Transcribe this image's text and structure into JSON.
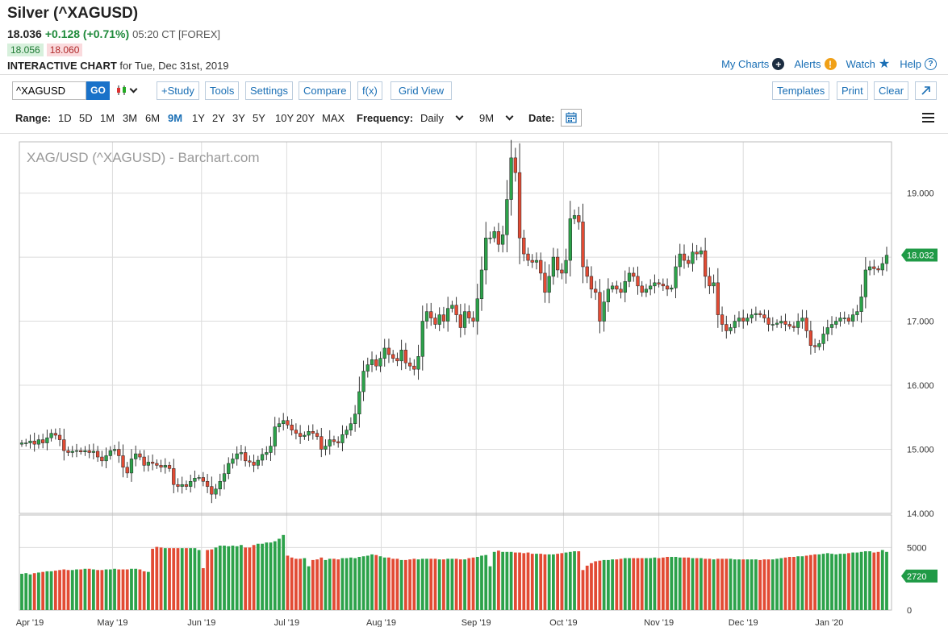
{
  "header": {
    "title": "Silver (^XAGUSD)",
    "last": "18.036",
    "change": "+0.128 (+0.71%)",
    "time": "05:20 CT [FOREX]",
    "bid": "18.056",
    "ask": "18.060",
    "chart_label": "INTERACTIVE CHART",
    "chart_date": "for Tue, Dec 31st, 2019"
  },
  "links": {
    "my_charts": "My Charts",
    "alerts": "Alerts",
    "watch": "Watch",
    "help": "Help"
  },
  "toolbar": {
    "symbol_value": "^XAGUSD",
    "go": "GO",
    "study": "+Study",
    "tools": "Tools",
    "settings": "Settings",
    "compare": "Compare",
    "fx": "f(x)",
    "grid_view": "Grid View",
    "templates": "Templates",
    "print": "Print",
    "clear": "Clear"
  },
  "rangebar": {
    "range_label": "Range:",
    "ranges": [
      "1D",
      "5D",
      "1M",
      "3M",
      "6M",
      "9M",
      "1Y",
      "2Y",
      "3Y",
      "5Y",
      "10Y",
      "20Y",
      "MAX"
    ],
    "active_range": "9M",
    "frequency_label": "Frequency:",
    "frequency_value": "Daily",
    "period_value": "9M",
    "date_label": "Date:"
  },
  "colors": {
    "up": "#2ca24a",
    "down": "#e24b34",
    "accent": "#1a6fb5",
    "price_tag": "#1f9a46"
  },
  "icons": [
    "plus-circle-icon",
    "alert-icon",
    "star-icon",
    "help-icon",
    "candlestick-icon",
    "calendar-icon",
    "expand-icon",
    "menu-icon"
  ],
  "chart_data": {
    "type": "candlestick",
    "title": "XAG/USD (^XAGUSD) - Barchart.com",
    "price_axis": {
      "ylim": [
        14.0,
        19.8
      ],
      "ticks": [
        "14.000",
        "15.000",
        "16.000",
        "17.000",
        "18.000",
        "19.000"
      ]
    },
    "volume_axis": {
      "ylim": [
        0,
        7600
      ],
      "ticks": [
        "0",
        "5000"
      ]
    },
    "x_ticks": [
      "Apr '19",
      "May '19",
      "Jun '19",
      "Jul '19",
      "Aug '19",
      "Sep '19",
      "Oct '19",
      "Nov '19",
      "Dec '19",
      "Jan '20"
    ],
    "last_price_label": "18.032",
    "last_volume_label": "2720",
    "grid": true,
    "closes": [
      15.1,
      15.1,
      15.13,
      15.08,
      15.15,
      15.1,
      15.18,
      15.25,
      15.22,
      15.15,
      14.98,
      14.95,
      14.97,
      14.98,
      14.96,
      14.98,
      14.95,
      14.97,
      14.88,
      14.82,
      14.9,
      14.98,
      15.0,
      14.9,
      14.72,
      14.63,
      14.85,
      14.93,
      14.88,
      14.75,
      14.8,
      14.78,
      14.75,
      14.72,
      14.75,
      14.7,
      14.45,
      14.42,
      14.45,
      14.42,
      14.5,
      14.55,
      14.56,
      14.5,
      14.42,
      14.3,
      14.38,
      14.5,
      14.62,
      14.78,
      14.85,
      14.93,
      14.95,
      14.82,
      14.8,
      14.75,
      14.83,
      14.92,
      14.95,
      15.05,
      15.35,
      15.4,
      15.45,
      15.38,
      15.3,
      15.25,
      15.2,
      15.22,
      15.28,
      15.25,
      15.2,
      15.0,
      15.05,
      15.15,
      15.12,
      15.1,
      15.23,
      15.3,
      15.4,
      15.55,
      15.9,
      16.22,
      16.32,
      16.4,
      16.3,
      16.42,
      16.58,
      16.48,
      16.42,
      16.38,
      16.55,
      16.35,
      16.3,
      16.25,
      16.45,
      17.0,
      17.15,
      17.05,
      16.95,
      17.1,
      17.0,
      17.2,
      17.25,
      17.1,
      16.9,
      17.15,
      17.05,
      17.0,
      17.35,
      17.8,
      18.3,
      18.3,
      18.4,
      18.2,
      18.35,
      18.9,
      19.55,
      19.32,
      18.3,
      18.05,
      17.95,
      17.92,
      17.95,
      17.75,
      17.45,
      17.7,
      18.0,
      17.8,
      17.75,
      17.95,
      18.6,
      18.65,
      18.55,
      17.85,
      17.7,
      17.5,
      17.45,
      17.0,
      17.3,
      17.5,
      17.55,
      17.5,
      17.45,
      17.62,
      17.75,
      17.7,
      17.55,
      17.45,
      17.5,
      17.55,
      17.6,
      17.58,
      17.55,
      17.5,
      17.52,
      17.85,
      18.05,
      17.95,
      17.9,
      18.08,
      18.05,
      18.1,
      17.7,
      17.55,
      17.6,
      17.1,
      16.95,
      16.85,
      16.9,
      17.0,
      17.05,
      17.0,
      17.05,
      17.1,
      17.12,
      17.1,
      17.05,
      16.95,
      16.95,
      16.97,
      17.0,
      16.95,
      16.92,
      16.9,
      17.0,
      17.05,
      16.85,
      16.62,
      16.6,
      16.65,
      16.8,
      16.9,
      16.95,
      17.0,
      17.05,
      17.05,
      17.0,
      17.1,
      17.15,
      17.38,
      17.8,
      17.85,
      17.82,
      17.8,
      17.9,
      18.03
    ],
    "volumes": [
      2900,
      2950,
      2850,
      2950,
      3000,
      3050,
      3100,
      3100,
      3150,
      3200,
      3250,
      3200,
      3200,
      3250,
      3250,
      3300,
      3300,
      3250,
      3200,
      3200,
      3250,
      3250,
      3300,
      3250,
      3250,
      3250,
      3300,
      3300,
      3250,
      3100,
      3050,
      4900,
      5050,
      5000,
      4950,
      4950,
      4950,
      4950,
      4950,
      4950,
      4950,
      4950,
      4800,
      3350,
      4800,
      4850,
      5000,
      5150,
      5150,
      5100,
      5150,
      5100,
      5200,
      5000,
      5000,
      5200,
      5300,
      5300,
      5400,
      5400,
      5500,
      5700,
      6000,
      4350,
      4200,
      4100,
      4100,
      4150,
      3500,
      4000,
      4050,
      4200,
      4000,
      4100,
      4100,
      4050,
      4150,
      4150,
      4200,
      4150,
      4250,
      4300,
      4350,
      4450,
      4400,
      4300,
      4200,
      4200,
      4100,
      4100,
      4000,
      4000,
      4050,
      4100,
      4050,
      4100,
      4100,
      4100,
      4100,
      4050,
      4050,
      4100,
      4100,
      4100,
      4050,
      4050,
      4150,
      4200,
      4250,
      4350,
      4400,
      3500,
      4650,
      4750,
      4650,
      4650,
      4650,
      4600,
      4600,
      4550,
      4600,
      4500,
      4500,
      4500,
      4450,
      4450,
      4450,
      4500,
      4550,
      4600,
      4650,
      4700,
      4700,
      3200,
      3550,
      3750,
      3900,
      3950,
      4000,
      4000,
      4050,
      4050,
      4100,
      4150,
      4150,
      4150,
      4150,
      4150,
      4150,
      4150,
      4200,
      4150,
      4200,
      4250,
      4250,
      4250,
      4200,
      4200,
      4200,
      4150,
      4150,
      4150,
      4100,
      4100,
      4050,
      4100,
      4100,
      4100,
      4100,
      4050,
      4050,
      4050,
      4050,
      4050,
      4050,
      4000,
      4050,
      4050,
      4050,
      4100,
      4150,
      4200,
      4250,
      4250,
      4300,
      4300,
      4350,
      4400,
      4450,
      4450,
      4500,
      4550,
      4500,
      4450,
      4500,
      4500,
      4550,
      4600,
      4600,
      4650,
      4700,
      4700,
      4600,
      4650,
      4800,
      4650,
      4700,
      2720
    ]
  }
}
